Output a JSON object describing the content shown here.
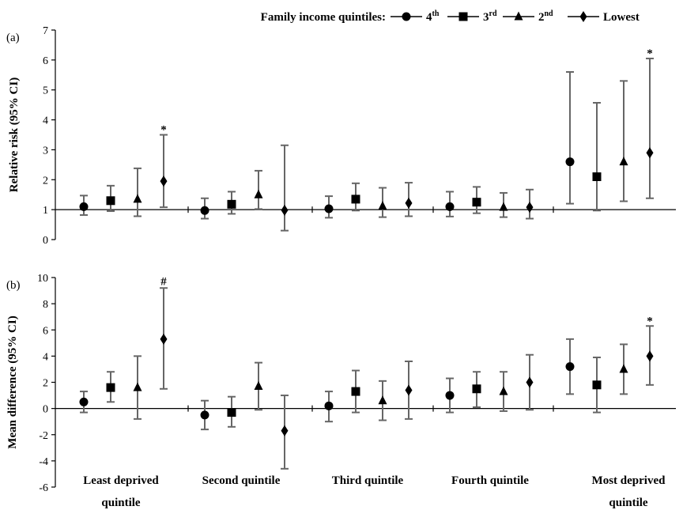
{
  "chart_data": {
    "type": "scatter",
    "legend": {
      "title": "Family income quintiles:",
      "placement": "top-right",
      "entries": [
        {
          "label": "4",
          "sup": "th",
          "marker": "circle"
        },
        {
          "label": "3",
          "sup": "rd",
          "marker": "square"
        },
        {
          "label": "2",
          "sup": "nd",
          "marker": "triangle"
        },
        {
          "label": "Lowest",
          "sup": "",
          "marker": "diamond"
        }
      ]
    },
    "categories": [
      {
        "line1": "Least deprived",
        "line2": "quintile"
      },
      {
        "line1": "Second quintile",
        "line2": ""
      },
      {
        "line1": "Third quintile",
        "line2": ""
      },
      {
        "line1": "Fourth quintile",
        "line2": ""
      },
      {
        "line1": "Most deprived",
        "line2": "quintile"
      }
    ],
    "panels": [
      {
        "label": "(a)",
        "ylabel": "Relative risk (95% CI)",
        "ylim": [
          0,
          7
        ],
        "yticks": [
          0,
          1,
          2,
          3,
          4,
          5,
          6,
          7
        ],
        "reference_line": 1,
        "groups": [
          {
            "points": [
              {
                "est": 1.1,
                "lo": 0.82,
                "hi": 1.47
              },
              {
                "est": 1.3,
                "lo": 0.95,
                "hi": 1.8
              },
              {
                "est": 1.35,
                "lo": 0.78,
                "hi": 2.38
              },
              {
                "est": 1.95,
                "lo": 1.08,
                "hi": 3.5,
                "annotation": "*"
              }
            ]
          },
          {
            "points": [
              {
                "est": 0.97,
                "lo": 0.7,
                "hi": 1.38
              },
              {
                "est": 1.18,
                "lo": 0.86,
                "hi": 1.6
              },
              {
                "est": 1.5,
                "lo": 1.02,
                "hi": 2.3
              },
              {
                "est": 0.98,
                "lo": 0.3,
                "hi": 3.15
              }
            ]
          },
          {
            "points": [
              {
                "est": 1.03,
                "lo": 0.73,
                "hi": 1.45
              },
              {
                "est": 1.35,
                "lo": 0.97,
                "hi": 1.88
              },
              {
                "est": 1.12,
                "lo": 0.75,
                "hi": 1.73
              },
              {
                "est": 1.22,
                "lo": 0.78,
                "hi": 1.9
              }
            ]
          },
          {
            "points": [
              {
                "est": 1.1,
                "lo": 0.77,
                "hi": 1.6
              },
              {
                "est": 1.25,
                "lo": 0.88,
                "hi": 1.76
              },
              {
                "est": 1.08,
                "lo": 0.75,
                "hi": 1.56
              },
              {
                "est": 1.08,
                "lo": 0.7,
                "hi": 1.67
              }
            ]
          },
          {
            "points": [
              {
                "est": 2.6,
                "lo": 1.2,
                "hi": 5.6
              },
              {
                "est": 2.1,
                "lo": 0.97,
                "hi": 4.57
              },
              {
                "est": 2.6,
                "lo": 1.28,
                "hi": 5.3
              },
              {
                "est": 2.9,
                "lo": 1.38,
                "hi": 6.05,
                "annotation": "*"
              }
            ]
          }
        ]
      },
      {
        "label": "(b)",
        "ylabel": "Mean difference (95% CI)",
        "ylim": [
          -6,
          10
        ],
        "yticks": [
          -6,
          -4,
          -2,
          0,
          2,
          4,
          6,
          8,
          10
        ],
        "reference_line": 0,
        "groups": [
          {
            "points": [
              {
                "est": 0.5,
                "lo": -0.3,
                "hi": 1.3
              },
              {
                "est": 1.6,
                "lo": 0.5,
                "hi": 2.8
              },
              {
                "est": 1.6,
                "lo": -0.8,
                "hi": 4.0
              },
              {
                "est": 5.3,
                "lo": 1.5,
                "hi": 9.2,
                "annotation": "#"
              }
            ]
          },
          {
            "points": [
              {
                "est": -0.5,
                "lo": -1.6,
                "hi": 0.6
              },
              {
                "est": -0.3,
                "lo": -1.4,
                "hi": 0.9
              },
              {
                "est": 1.7,
                "lo": -0.1,
                "hi": 3.5
              },
              {
                "est": -1.7,
                "lo": -4.6,
                "hi": 1.0
              }
            ]
          },
          {
            "points": [
              {
                "est": 0.2,
                "lo": -1.0,
                "hi": 1.3
              },
              {
                "est": 1.3,
                "lo": -0.3,
                "hi": 2.9
              },
              {
                "est": 0.6,
                "lo": -0.9,
                "hi": 2.1
              },
              {
                "est": 1.4,
                "lo": -0.8,
                "hi": 3.6
              }
            ]
          },
          {
            "points": [
              {
                "est": 1.0,
                "lo": -0.3,
                "hi": 2.3
              },
              {
                "est": 1.5,
                "lo": 0.1,
                "hi": 2.8
              },
              {
                "est": 1.3,
                "lo": -0.2,
                "hi": 2.8
              },
              {
                "est": 2.0,
                "lo": -0.1,
                "hi": 4.1
              }
            ]
          },
          {
            "points": [
              {
                "est": 3.2,
                "lo": 1.1,
                "hi": 5.3
              },
              {
                "est": 1.8,
                "lo": -0.3,
                "hi": 3.9
              },
              {
                "est": 3.0,
                "lo": 1.1,
                "hi": 4.9
              },
              {
                "est": 4.0,
                "lo": 1.8,
                "hi": 6.3,
                "annotation": "*"
              }
            ]
          }
        ]
      }
    ]
  }
}
